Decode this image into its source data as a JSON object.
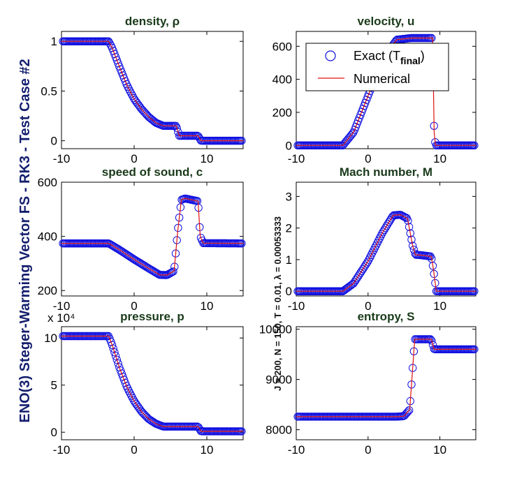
{
  "figure": {
    "side_title": "ENO(3) Steger-Warming Vector FS - RK3 - Test Case #2",
    "side_subtitle": "J = 200,  N = 150,  T = 0.01,  λ = 0.00053333",
    "colors": {
      "exact": "#1010e0",
      "numerical": "#e01010",
      "axes": "#000000",
      "title": "#1a3a1a",
      "side_title": "#141f6e"
    }
  },
  "legend": {
    "exact_label": "Exact (T",
    "exact_sub": "final",
    "exact_close": ")",
    "numerical_label": "Numerical",
    "placement": "top-right of velocity panel"
  },
  "chart_data": [
    {
      "id": "density",
      "type": "line",
      "title": "density, ρ",
      "xlim": [
        -10,
        15
      ],
      "ylim": [
        -0.08,
        1.1
      ],
      "xticks": [
        {
          "v": -10,
          "t": "-10"
        },
        {
          "v": 0,
          "t": "0"
        },
        {
          "v": 10,
          "t": "10"
        }
      ],
      "yticks": [
        {
          "v": 0,
          "t": "0"
        },
        {
          "v": 0.5,
          "t": "0.5"
        },
        {
          "v": 1,
          "t": "1"
        }
      ],
      "exponent_label": "",
      "series": [
        {
          "role": "exact",
          "x": [
            -10,
            -3.5,
            -3,
            -2,
            -1,
            0,
            1,
            2,
            3,
            4,
            5,
            5.8,
            6.2,
            8.8,
            9.2,
            15
          ],
          "y": [
            1,
            1,
            0.93,
            0.74,
            0.56,
            0.42,
            0.32,
            0.24,
            0.18,
            0.15,
            0.15,
            0.15,
            0.05,
            0.05,
            0.0,
            0.0
          ]
        },
        {
          "role": "numerical",
          "x": [
            -10,
            -3.5,
            -3,
            -2,
            -1,
            0,
            1,
            2,
            3,
            4,
            5,
            5.8,
            6.2,
            8.8,
            9.2,
            15
          ],
          "y": [
            1,
            1,
            0.93,
            0.74,
            0.56,
            0.42,
            0.32,
            0.24,
            0.18,
            0.15,
            0.15,
            0.15,
            0.05,
            0.05,
            0.0,
            0.0
          ]
        }
      ]
    },
    {
      "id": "velocity",
      "type": "line",
      "title": "velocity, u",
      "xlim": [
        -10,
        15
      ],
      "ylim": [
        -20,
        690
      ],
      "xticks": [
        {
          "v": -10,
          "t": "-10"
        },
        {
          "v": 0,
          "t": "0"
        },
        {
          "v": 10,
          "t": "10"
        }
      ],
      "yticks": [
        {
          "v": 0,
          "t": "0"
        },
        {
          "v": 200,
          "t": "200"
        },
        {
          "v": 400,
          "t": "400"
        },
        {
          "v": 600,
          "t": "600"
        }
      ],
      "exponent_label": "",
      "series": [
        {
          "role": "exact",
          "x": [
            -10,
            -3.5,
            -2,
            0,
            2,
            4,
            6,
            8,
            9,
            9.2,
            9.4,
            15
          ],
          "y": [
            0,
            0,
            80,
            300,
            520,
            640,
            650,
            650,
            650,
            80,
            0,
            0
          ]
        },
        {
          "role": "numerical",
          "x": [
            -10,
            -3.5,
            -2,
            0,
            2,
            4,
            6,
            8,
            9,
            9.2,
            9.4,
            15
          ],
          "y": [
            0,
            0,
            80,
            300,
            520,
            640,
            650,
            650,
            650,
            80,
            0,
            0
          ]
        }
      ]
    },
    {
      "id": "sound",
      "type": "line",
      "title": "speed of sound, c",
      "xlim": [
        -10,
        15
      ],
      "ylim": [
        180,
        600
      ],
      "xticks": [
        {
          "v": -10,
          "t": "-10"
        },
        {
          "v": 0,
          "t": "0"
        },
        {
          "v": 10,
          "t": "10"
        }
      ],
      "yticks": [
        {
          "v": 200,
          "t": "200"
        },
        {
          "v": 400,
          "t": "400"
        },
        {
          "v": 600,
          "t": "600"
        }
      ],
      "exponent_label": "",
      "series": [
        {
          "role": "exact",
          "x": [
            -10,
            -3.5,
            -2,
            0,
            2,
            3.5,
            4.5,
            5.5,
            6,
            6.5,
            7,
            8.8,
            9.1,
            9.5,
            15
          ],
          "y": [
            374,
            374,
            350,
            315,
            282,
            258,
            257,
            272,
            420,
            535,
            540,
            530,
            400,
            375,
            374
          ]
        },
        {
          "role": "numerical",
          "x": [
            -10,
            -3.5,
            -2,
            0,
            2,
            3.5,
            4.5,
            5.5,
            6,
            6.5,
            7,
            8.8,
            9.1,
            9.5,
            15
          ],
          "y": [
            374,
            374,
            350,
            315,
            282,
            258,
            257,
            272,
            420,
            535,
            540,
            530,
            400,
            375,
            374
          ]
        }
      ]
    },
    {
      "id": "mach",
      "type": "line",
      "title": "Mach number, M",
      "xlim": [
        -10,
        15
      ],
      "ylim": [
        -0.15,
        3.45
      ],
      "xticks": [
        {
          "v": -10,
          "t": "-10"
        },
        {
          "v": 0,
          "t": "0"
        },
        {
          "v": 10,
          "t": "10"
        }
      ],
      "yticks": [
        {
          "v": 0,
          "t": "0"
        },
        {
          "v": 1,
          "t": "1"
        },
        {
          "v": 2,
          "t": "2"
        },
        {
          "v": 3,
          "t": "3"
        }
      ],
      "exponent_label": "",
      "series": [
        {
          "role": "exact",
          "x": [
            -10,
            -3.5,
            -2,
            0,
            2,
            3.5,
            4.5,
            5.5,
            6.2,
            6.6,
            7,
            8.8,
            9.1,
            9.5,
            15
          ],
          "y": [
            0,
            0,
            0.25,
            0.95,
            1.85,
            2.4,
            2.42,
            2.3,
            1.45,
            1.15,
            1.15,
            1.1,
            0.7,
            0.0,
            0.0
          ]
        },
        {
          "role": "numerical",
          "x": [
            -10,
            -3.5,
            -2,
            0,
            2,
            3.5,
            4.5,
            5.5,
            6.2,
            6.6,
            7,
            8.8,
            9.1,
            9.5,
            15
          ],
          "y": [
            0,
            0,
            0.25,
            0.95,
            1.85,
            2.4,
            2.42,
            2.3,
            1.45,
            1.15,
            1.15,
            1.1,
            0.7,
            0.0,
            0.0
          ]
        }
      ]
    },
    {
      "id": "pressure",
      "type": "line",
      "title": "pressure, p",
      "xlim": [
        -10,
        15
      ],
      "ylim": [
        -0.8,
        11.2
      ],
      "xticks": [
        {
          "v": -10,
          "t": "-10"
        },
        {
          "v": 0,
          "t": "0"
        },
        {
          "v": 10,
          "t": "10"
        }
      ],
      "yticks": [
        {
          "v": 0,
          "t": "0"
        },
        {
          "v": 5,
          "t": "5"
        },
        {
          "v": 10,
          "t": "10"
        }
      ],
      "exponent_label": "x 10⁴",
      "series": [
        {
          "role": "exact",
          "x": [
            -10,
            -3.5,
            -3,
            -2,
            -1,
            0,
            1,
            2,
            3,
            4,
            6,
            8.8,
            9.2,
            15
          ],
          "y": [
            10.2,
            10.2,
            9.2,
            6.8,
            4.8,
            3.3,
            2.2,
            1.4,
            0.9,
            0.6,
            0.6,
            0.6,
            0.1,
            0.1
          ]
        },
        {
          "role": "numerical",
          "x": [
            -10,
            -3.5,
            -3,
            -2,
            -1,
            0,
            1,
            2,
            3,
            4,
            6,
            8.8,
            9.2,
            15
          ],
          "y": [
            10.2,
            10.2,
            9.2,
            6.8,
            4.8,
            3.3,
            2.2,
            1.4,
            0.9,
            0.6,
            0.6,
            0.6,
            0.1,
            0.1
          ]
        }
      ]
    },
    {
      "id": "entropy",
      "type": "line",
      "title": "entropy, S",
      "xlim": [
        -10,
        15
      ],
      "ylim": [
        7800,
        10050
      ],
      "xticks": [
        {
          "v": -10,
          "t": "-10"
        },
        {
          "v": 0,
          "t": "0"
        },
        {
          "v": 10,
          "t": "10"
        }
      ],
      "yticks": [
        {
          "v": 8000,
          "t": "8000"
        },
        {
          "v": 9000,
          "t": "9000"
        },
        {
          "v": 10000,
          "t": "10000"
        }
      ],
      "exponent_label": "",
      "series": [
        {
          "role": "exact",
          "x": [
            -10,
            4,
            5,
            5.8,
            6.1,
            6.5,
            7,
            8.8,
            9.2,
            15
          ],
          "y": [
            8260,
            8260,
            8270,
            8400,
            9000,
            9800,
            9800,
            9800,
            9600,
            9600
          ]
        },
        {
          "role": "numerical",
          "x": [
            -10,
            4,
            5,
            5.8,
            6.1,
            6.5,
            7,
            8.8,
            9.2,
            15
          ],
          "y": [
            8260,
            8260,
            8270,
            8400,
            9000,
            9800,
            9800,
            9800,
            9600,
            9600
          ]
        }
      ]
    }
  ]
}
